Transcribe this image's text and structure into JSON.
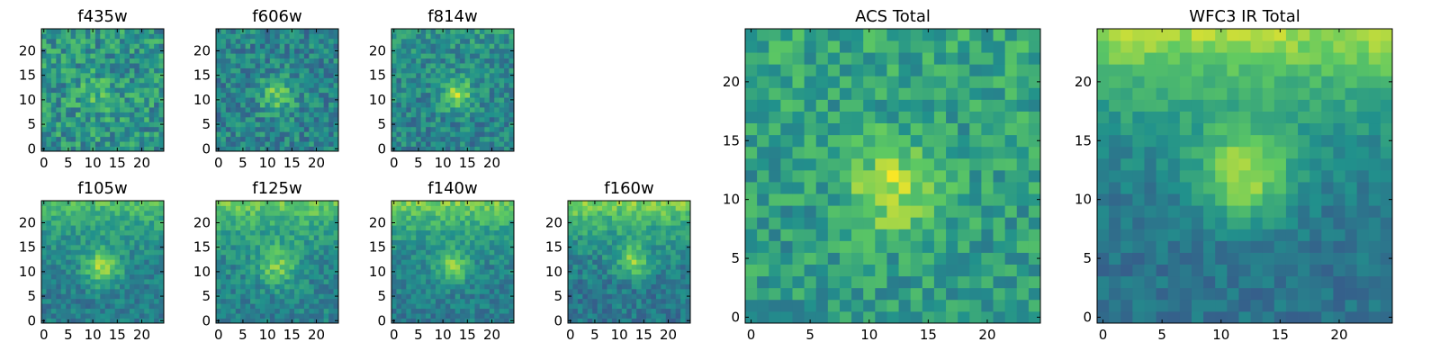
{
  "figure": {
    "colormap": "viridis",
    "colormap_stops": [
      "#440154",
      "#3b528b",
      "#21918c",
      "#5ec962",
      "#fde725"
    ]
  },
  "chart_data": [
    {
      "type": "heatmap",
      "title": "f435w",
      "size": 25,
      "xlim": [
        0,
        24
      ],
      "ylim": [
        0,
        24
      ],
      "xticks": [
        0,
        5,
        10,
        15,
        20
      ],
      "yticks": [
        0,
        5,
        10,
        15,
        20
      ],
      "center": [
        11,
        11
      ],
      "source_amplitude": 0.12,
      "source_width": 3.0,
      "top_excess": 0.0,
      "noise": 0.38,
      "base": 0.52,
      "seed": 11
    },
    {
      "type": "heatmap",
      "title": "f606w",
      "size": 25,
      "xlim": [
        0,
        24
      ],
      "ylim": [
        0,
        24
      ],
      "xticks": [
        0,
        5,
        10,
        15,
        20
      ],
      "yticks": [
        0,
        5,
        10,
        15,
        20
      ],
      "center": [
        12,
        11
      ],
      "source_amplitude": 0.32,
      "source_width": 2.4,
      "top_excess": 0.0,
      "noise": 0.32,
      "base": 0.45,
      "seed": 23
    },
    {
      "type": "heatmap",
      "title": "f814w",
      "size": 25,
      "xlim": [
        0,
        24
      ],
      "ylim": [
        0,
        24
      ],
      "xticks": [
        0,
        5,
        10,
        15,
        20
      ],
      "yticks": [
        0,
        5,
        10,
        15,
        20
      ],
      "center": [
        13,
        11
      ],
      "source_amplitude": 0.38,
      "source_width": 2.2,
      "top_excess": 0.08,
      "noise": 0.3,
      "base": 0.45,
      "seed": 37
    },
    {
      "type": "heatmap",
      "title": "f105w",
      "size": 25,
      "xlim": [
        0,
        24
      ],
      "ylim": [
        0,
        24
      ],
      "xticks": [
        0,
        5,
        10,
        15,
        20
      ],
      "yticks": [
        0,
        5,
        10,
        15,
        20
      ],
      "center": [
        12,
        11
      ],
      "source_amplitude": 0.4,
      "source_width": 2.6,
      "top_excess": 0.28,
      "noise": 0.22,
      "base": 0.42,
      "seed": 41
    },
    {
      "type": "heatmap",
      "title": "f125w",
      "size": 25,
      "xlim": [
        0,
        24
      ],
      "ylim": [
        0,
        24
      ],
      "xticks": [
        0,
        5,
        10,
        15,
        20
      ],
      "yticks": [
        0,
        5,
        10,
        15,
        20
      ],
      "center": [
        12,
        11
      ],
      "source_amplitude": 0.3,
      "source_width": 2.8,
      "top_excess": 0.32,
      "noise": 0.24,
      "base": 0.44,
      "seed": 53
    },
    {
      "type": "heatmap",
      "title": "f140w",
      "size": 25,
      "xlim": [
        0,
        24
      ],
      "ylim": [
        0,
        24
      ],
      "xticks": [
        0,
        5,
        10,
        15,
        20
      ],
      "yticks": [
        0,
        5,
        10,
        15,
        20
      ],
      "center": [
        12,
        11
      ],
      "source_amplitude": 0.34,
      "source_width": 2.4,
      "top_excess": 0.36,
      "noise": 0.22,
      "base": 0.42,
      "seed": 67
    },
    {
      "type": "heatmap",
      "title": "f160w",
      "size": 25,
      "xlim": [
        0,
        24
      ],
      "ylim": [
        0,
        24
      ],
      "xticks": [
        0,
        5,
        10,
        15,
        20
      ],
      "yticks": [
        0,
        5,
        10,
        15,
        20
      ],
      "center": [
        13,
        12
      ],
      "source_amplitude": 0.34,
      "source_width": 2.4,
      "top_excess": 0.4,
      "noise": 0.24,
      "base": 0.4,
      "seed": 79
    },
    {
      "type": "heatmap",
      "title": "ACS Total",
      "size": 25,
      "xlim": [
        0,
        24
      ],
      "ylim": [
        0,
        24
      ],
      "xticks": [
        0,
        5,
        10,
        15,
        20
      ],
      "yticks": [
        0,
        5,
        10,
        15,
        20
      ],
      "center": [
        12,
        11
      ],
      "source_amplitude": 0.34,
      "source_width": 2.6,
      "top_excess": 0.05,
      "noise": 0.3,
      "base": 0.55,
      "seed": 97
    },
    {
      "type": "heatmap",
      "title": "WFC3 IR Total",
      "size": 25,
      "xlim": [
        0,
        24
      ],
      "ylim": [
        0,
        24
      ],
      "xticks": [
        0,
        5,
        10,
        15,
        20
      ],
      "yticks": [
        0,
        5,
        10,
        15,
        20
      ],
      "center": [
        12,
        12
      ],
      "source_amplitude": 0.42,
      "source_width": 2.8,
      "top_excess": 0.48,
      "noise": 0.16,
      "base": 0.38,
      "seed": 113
    }
  ]
}
